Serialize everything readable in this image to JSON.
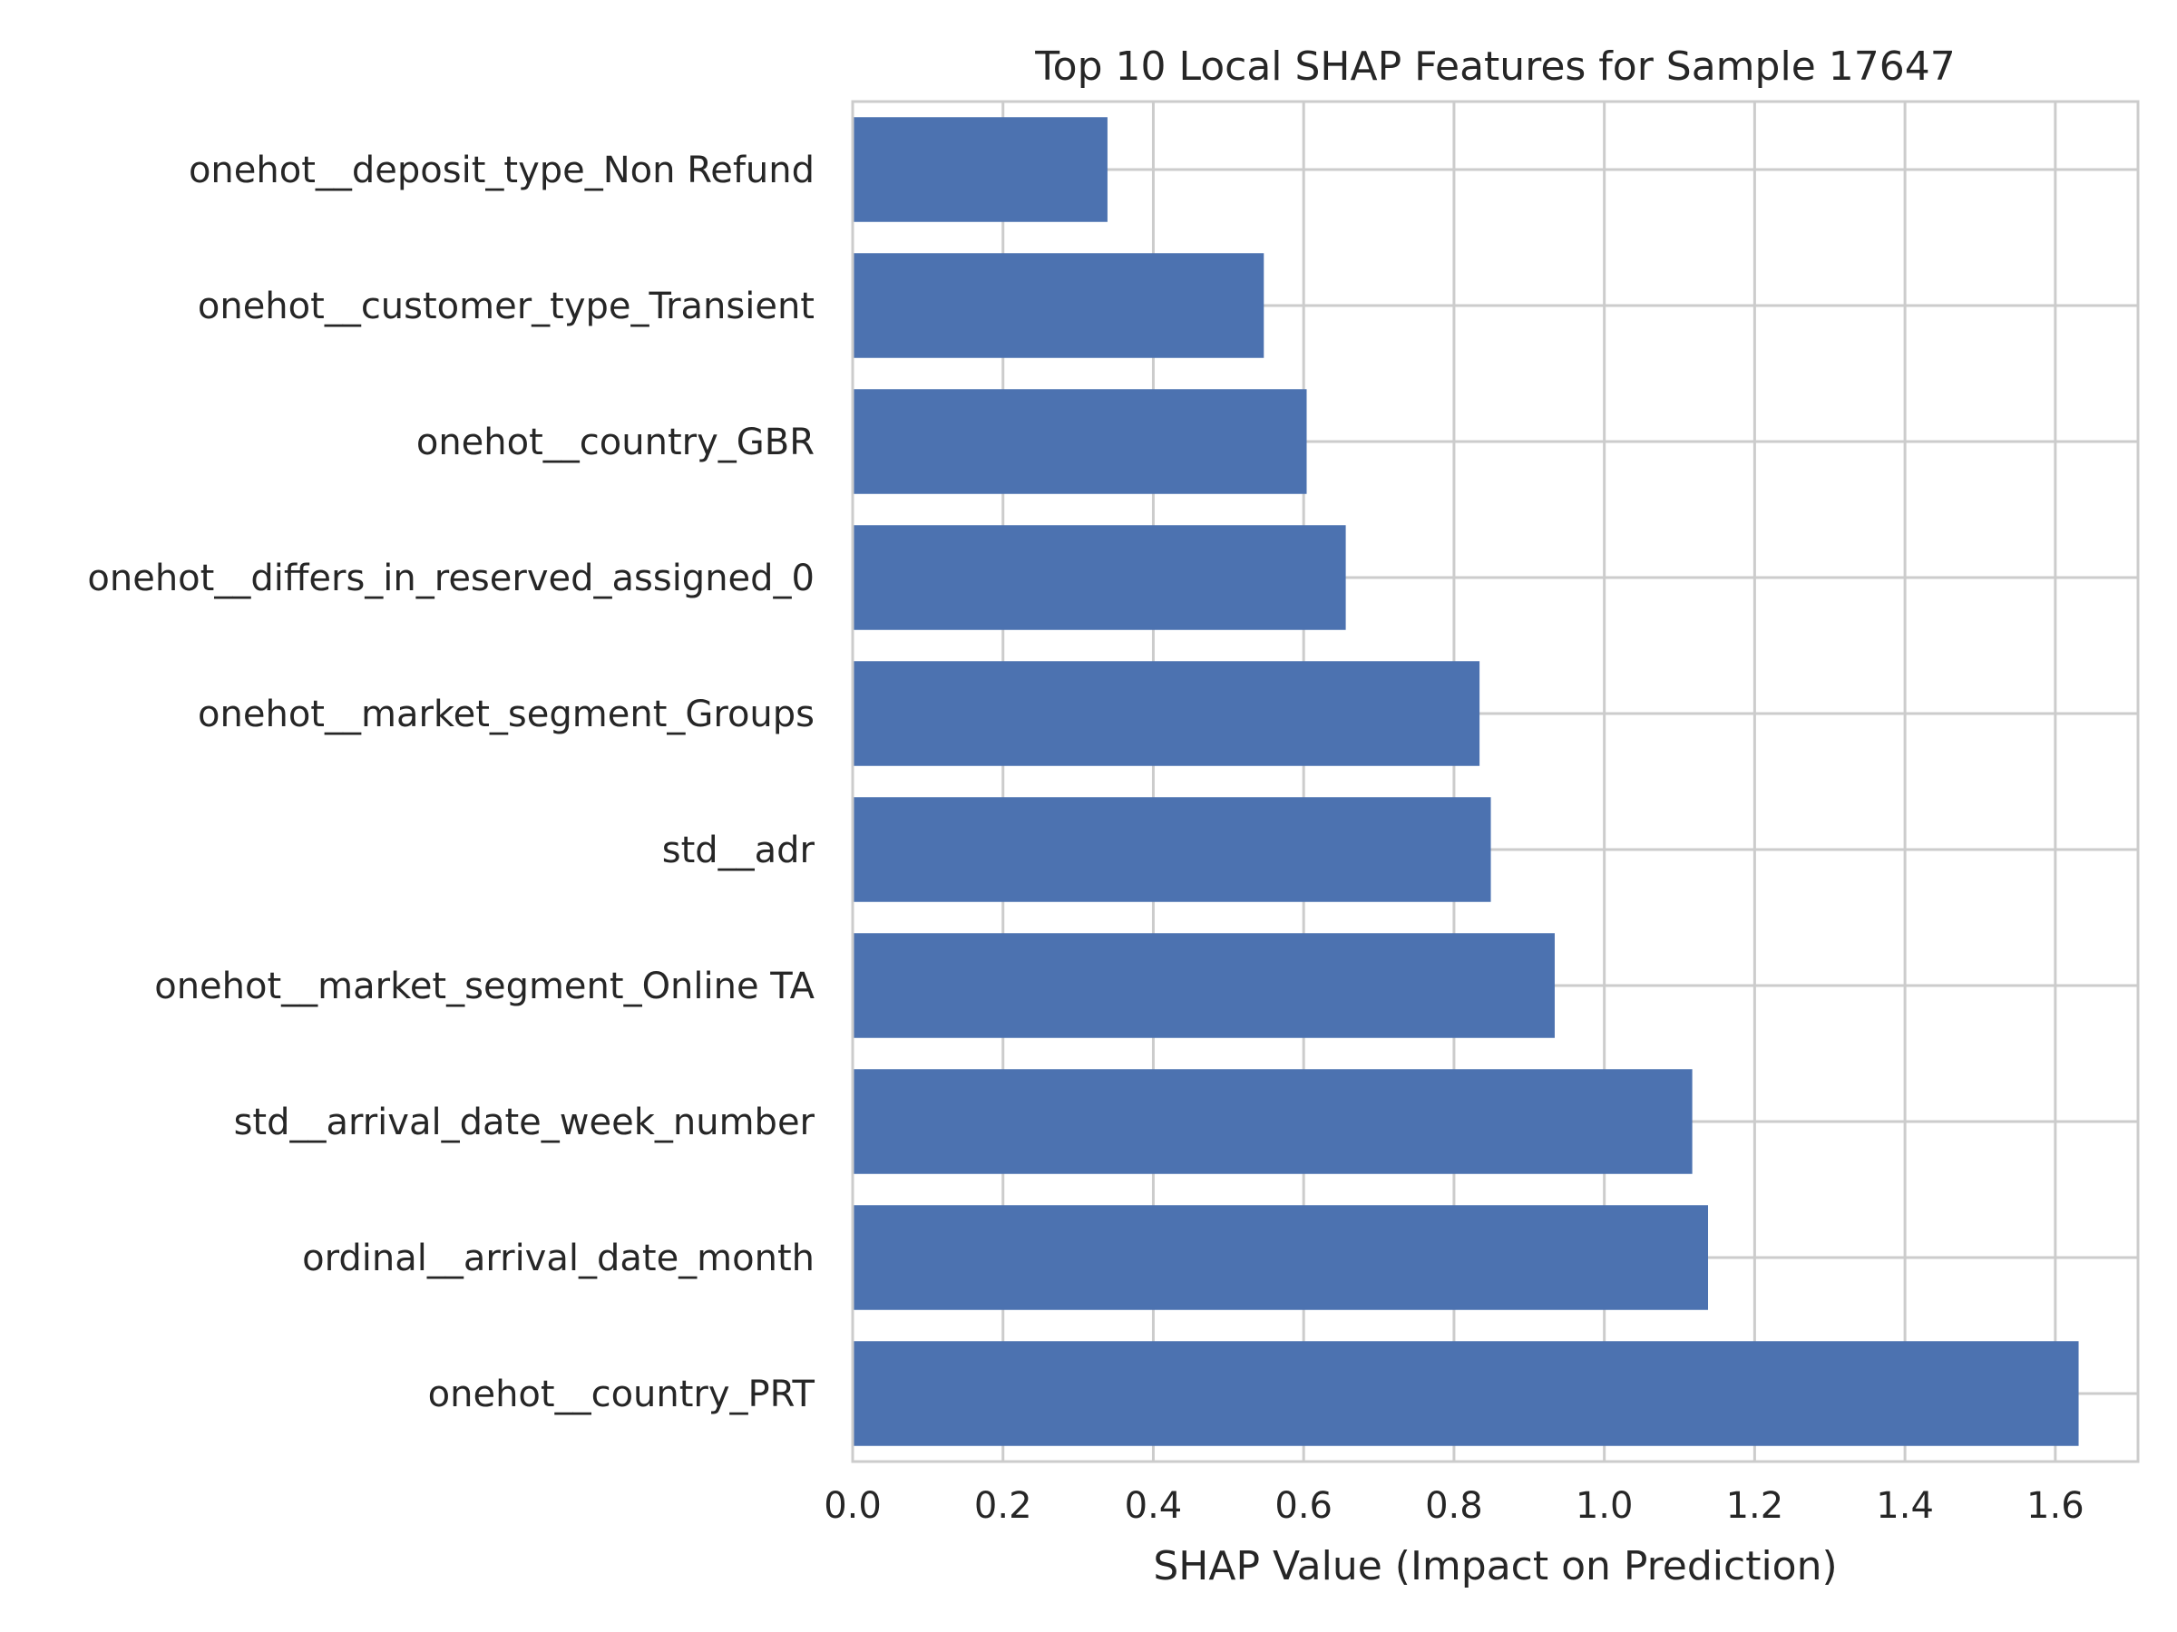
{
  "chart_data": {
    "type": "bar",
    "orientation": "horizontal",
    "title": "Top 10 Local SHAP Features for Sample 17647",
    "xlabel": "SHAP Value (Impact on Prediction)",
    "ylabel": "",
    "xlim": [
      0,
      1.71
    ],
    "xticks": [
      "0.0",
      "0.2",
      "0.4",
      "0.6",
      "0.8",
      "1.0",
      "1.2",
      "1.4",
      "1.6"
    ],
    "grid": true,
    "bar_color": "#4c72b0",
    "categories": [
      "onehot__deposit_type_Non Refund",
      "onehot__customer_type_Transient",
      "onehot__country_GBR",
      "onehot__differs_in_reserved_assigned_0",
      "onehot__market_segment_Groups",
      "std__adr",
      "onehot__market_segment_Online TA",
      "std__arrival_date_week_number",
      "ordinal__arrival_date_month",
      "onehot__country_PRT"
    ],
    "values": [
      0.339,
      0.547,
      0.604,
      0.656,
      0.834,
      0.849,
      0.934,
      1.117,
      1.138,
      1.631
    ]
  }
}
